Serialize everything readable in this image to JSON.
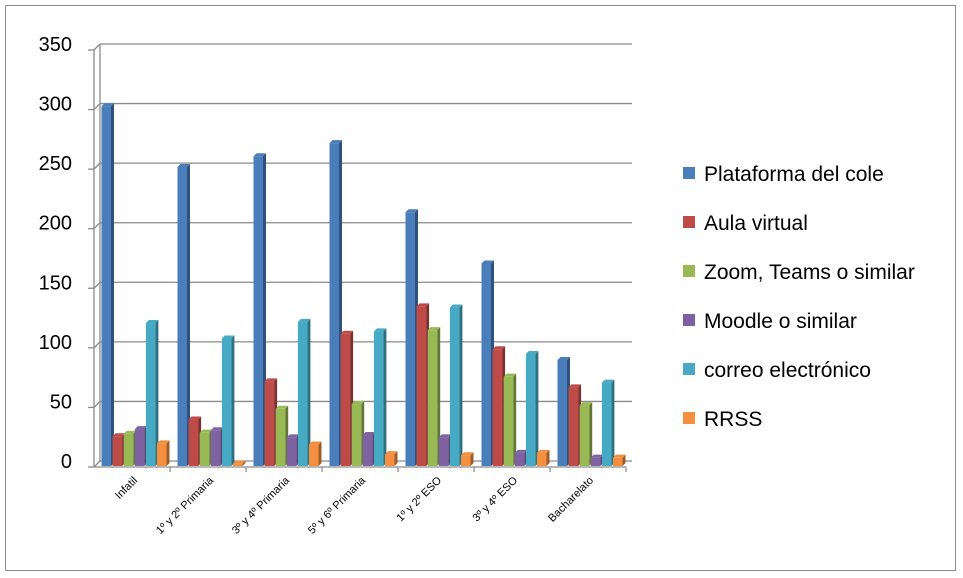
{
  "chart_data": {
    "type": "bar",
    "categories": [
      "Infatil",
      "1º y 2º Primaria",
      "3º y 4º Primaria",
      "5º y 6º Primaria",
      "1º y 2º ESO",
      "3º y 4º ESO",
      "Bacharelato"
    ],
    "series": [
      {
        "name": "Plataforma del cole",
        "color": "#4a7ebb",
        "values": [
          302,
          251,
          260,
          271,
          213,
          170,
          89
        ]
      },
      {
        "name": "Aula virtual",
        "color": "#be4b48",
        "values": [
          25,
          39,
          71,
          111,
          134,
          98,
          66
        ]
      },
      {
        "name": "Zoom, Teams o similar",
        "color": "#98b954",
        "values": [
          27,
          28,
          48,
          52,
          114,
          75,
          51
        ]
      },
      {
        "name": "Moodle o similar",
        "color": "#7e62a1",
        "values": [
          31,
          30,
          24,
          26,
          24,
          11,
          7
        ]
      },
      {
        "name": "correo electrónico",
        "color": "#46aac5",
        "values": [
          120,
          107,
          121,
          113,
          133,
          94,
          70
        ]
      },
      {
        "name": "RRSS",
        "color": "#f38f3e",
        "values": [
          19,
          2,
          18,
          10,
          9,
          11,
          7
        ]
      }
    ],
    "y_ticks": [
      "0",
      "50",
      "100",
      "150",
      "200",
      "250",
      "300",
      "350"
    ],
    "ylim": [
      0,
      350
    ],
    "grid": true,
    "legend_position": "right"
  }
}
